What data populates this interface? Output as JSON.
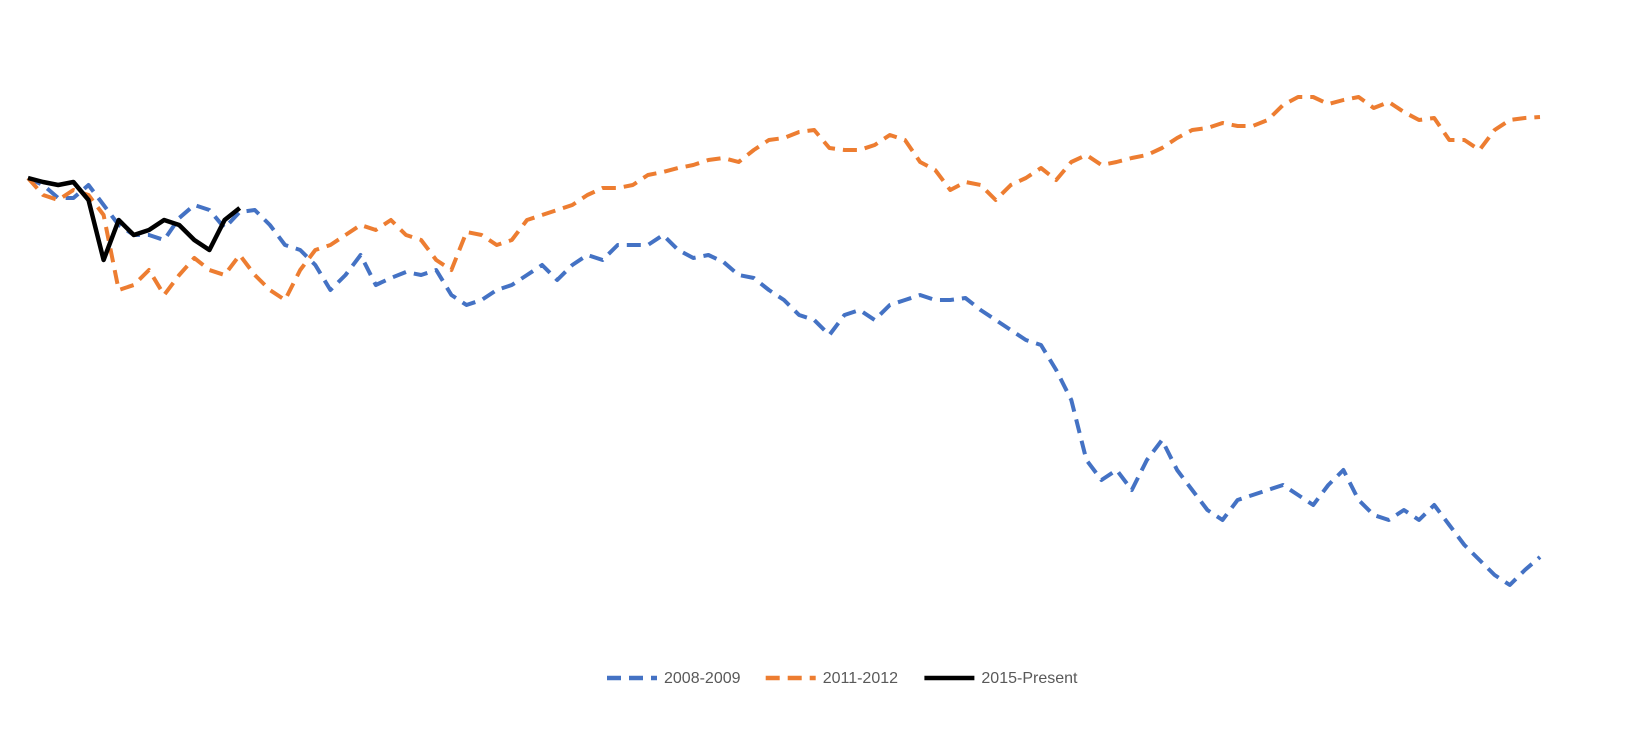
{
  "chart_data": {
    "type": "line",
    "x": [
      0,
      1,
      2,
      3,
      4,
      5,
      6,
      7,
      8,
      9,
      10,
      11,
      12,
      13,
      14,
      15,
      16,
      17,
      18,
      19,
      20,
      21,
      22,
      23,
      24,
      25,
      26,
      27,
      28,
      29,
      30,
      31,
      32,
      33,
      34,
      35,
      36,
      37,
      38,
      39,
      40,
      41,
      42,
      43,
      44,
      45,
      46,
      47,
      48,
      49,
      50,
      51,
      52,
      53,
      54,
      55,
      56,
      57,
      58,
      59,
      60,
      61,
      62,
      63,
      64,
      65,
      66,
      67,
      68,
      69,
      70,
      71,
      72,
      73,
      74,
      75,
      76,
      77,
      78,
      79,
      80,
      81,
      82,
      83,
      84,
      85,
      86,
      87,
      88,
      89,
      90,
      91,
      92,
      93,
      94,
      95,
      96,
      97,
      98,
      99,
      100
    ],
    "xlim": [
      0,
      100
    ],
    "ylim": [
      10,
      120
    ],
    "legend": "bottom",
    "series": [
      {
        "name": "2008-2009",
        "color": "#4472c4",
        "dash": true,
        "values": [
          100,
          98.6,
          96,
          96,
          98.6,
          94.6,
          90.6,
          88.6,
          88.6,
          87.6,
          92,
          94.6,
          93.6,
          90,
          93.2,
          93.6,
          90.6,
          86.6,
          85.6,
          82.6,
          77.6,
          80.6,
          84.6,
          78.6,
          80,
          81.2,
          80.6,
          81.6,
          76.6,
          74.6,
          75.6,
          77.6,
          78.6,
          80.6,
          82.6,
          79.6,
          82.6,
          84.6,
          83.6,
          86.6,
          86.6,
          86.6,
          88.6,
          85.6,
          84,
          84.6,
          83.2,
          80.6,
          80,
          77.6,
          75.6,
          72.6,
          71.6,
          68.6,
          72.6,
          73.6,
          71.6,
          74.6,
          75.6,
          76.6,
          75.6,
          75.6,
          76,
          73.6,
          71.6,
          69.6,
          67.6,
          66.6,
          61.6,
          55.6,
          43.6,
          39.6,
          41.6,
          37.6,
          43.6,
          47.6,
          41.6,
          37.6,
          33.6,
          31.6,
          35.6,
          36.6,
          37.6,
          38.6,
          36.6,
          34.6,
          38.6,
          41.6,
          35.6,
          32.6,
          31.6,
          33.6,
          31.6,
          34.6,
          30.6,
          26.6,
          23.6,
          20.6,
          18.6,
          21.6,
          24.2
        ]
      },
      {
        "name": "2011-2012",
        "color": "#ed7d31",
        "dash": true,
        "values": [
          100,
          96.6,
          95.6,
          97.6,
          96.6,
          92.6,
          77.6,
          78.6,
          81.6,
          76.6,
          80.6,
          84,
          81.6,
          80.6,
          84.6,
          80.6,
          77.6,
          75.6,
          81.6,
          85.6,
          86.6,
          88.6,
          90.6,
          89.6,
          91.6,
          88.6,
          87.6,
          83.6,
          81.6,
          89.2,
          88.6,
          86.6,
          87.6,
          91.6,
          92.6,
          93.6,
          94.6,
          96.6,
          98,
          98,
          98.6,
          100.6,
          101.2,
          102,
          102.6,
          103.6,
          104,
          103.2,
          105.6,
          107.6,
          108,
          109.2,
          109.6,
          106,
          105.6,
          105.6,
          106.6,
          108.6,
          107.6,
          103.2,
          101.6,
          97.6,
          99.2,
          98.6,
          95.6,
          98.6,
          100,
          102,
          99.6,
          103.2,
          104.6,
          102.6,
          103.2,
          104,
          104.6,
          106,
          108,
          109.6,
          110,
          111,
          110.4,
          110.4,
          111.6,
          114.6,
          116.2,
          116.2,
          114.8,
          115.6,
          116.2,
          114,
          115.2,
          113.2,
          111.6,
          112,
          107.6,
          107.6,
          105.6,
          109.6,
          111.6,
          112,
          112.2
        ]
      },
      {
        "name": "2015-Present",
        "color": "#000000",
        "dash": false,
        "values": [
          100,
          99.2,
          98.6,
          99.2,
          95.6,
          83.6,
          91.6,
          88.6,
          89.6,
          91.6,
          90.6,
          87.6,
          85.6,
          91.6,
          94,
          null,
          null,
          null,
          null,
          null,
          null,
          null,
          null,
          null,
          null,
          null,
          null,
          null,
          null,
          null,
          null,
          null,
          null,
          null,
          null,
          null,
          null,
          null,
          null,
          null,
          null,
          null,
          null,
          null,
          null,
          null,
          null,
          null,
          null,
          null,
          null,
          null,
          null,
          null,
          null,
          null,
          null,
          null,
          null,
          null,
          null,
          null,
          null,
          null,
          null,
          null,
          null,
          null,
          null,
          null,
          null,
          null,
          null,
          null,
          null,
          null,
          null,
          null,
          null,
          null,
          null,
          null,
          null,
          null,
          null,
          null,
          null,
          null,
          null,
          null,
          null,
          null,
          null,
          null,
          null,
          null,
          null,
          null,
          null,
          null,
          null
        ]
      }
    ]
  }
}
